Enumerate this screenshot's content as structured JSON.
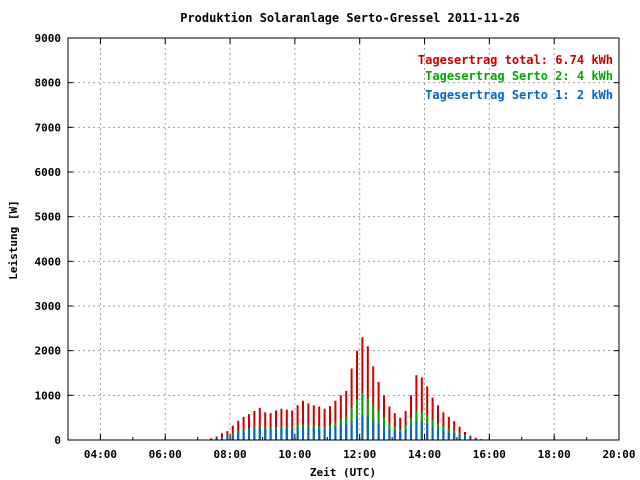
{
  "chart_data": {
    "type": "bar",
    "stacked": true,
    "title": "Produktion Solaranlage Serto-Gressel 2011-11-26",
    "xlabel": "Zeit (UTC)",
    "ylabel": "Leistung [W]",
    "ylim": [
      0,
      9000
    ],
    "xlim": [
      "03:00",
      "20:00"
    ],
    "grid": true,
    "legend_position": "top-right",
    "x_ticks": [
      "04:00",
      "06:00",
      "08:00",
      "10:00",
      "12:00",
      "14:00",
      "16:00",
      "18:00",
      "20:00"
    ],
    "y_ticks": [
      0,
      1000,
      2000,
      3000,
      4000,
      5000,
      6000,
      7000,
      8000,
      9000
    ],
    "legend": [
      {
        "label": "Tagesertrag total",
        "value": "6.74 kWh",
        "color": "#cc0000"
      },
      {
        "label": "Tagesertrag Serto 2",
        "value": "4 kWh",
        "color": "#00aa00"
      },
      {
        "label": "Tagesertrag Serto 1",
        "value": "2 kWh",
        "color": "#0066cc"
      }
    ],
    "colors": {
      "total": "#cc0000",
      "serto2": "#00aa00",
      "serto1": "#0066cc"
    },
    "x": [
      "07:25",
      "07:35",
      "07:45",
      "07:55",
      "08:05",
      "08:15",
      "08:25",
      "08:35",
      "08:45",
      "08:55",
      "09:05",
      "09:15",
      "09:25",
      "09:35",
      "09:45",
      "09:55",
      "10:05",
      "10:15",
      "10:25",
      "10:35",
      "10:45",
      "10:55",
      "11:05",
      "11:15",
      "11:25",
      "11:35",
      "11:45",
      "11:55",
      "12:05",
      "12:15",
      "12:25",
      "12:35",
      "12:45",
      "12:55",
      "13:05",
      "13:15",
      "13:25",
      "13:35",
      "13:45",
      "13:55",
      "14:05",
      "14:15",
      "14:25",
      "14:35",
      "14:45",
      "14:55",
      "15:05",
      "15:15",
      "15:25",
      "15:35",
      "15:45"
    ],
    "series": [
      {
        "name": "Tagesertrag Serto 1",
        "values": [
          20,
          40,
          60,
          80,
          120,
          170,
          200,
          230,
          260,
          280,
          250,
          240,
          260,
          270,
          260,
          250,
          280,
          300,
          290,
          280,
          260,
          250,
          270,
          300,
          320,
          350,
          420,
          500,
          560,
          520,
          420,
          360,
          300,
          240,
          200,
          180,
          230,
          320,
          420,
          400,
          360,
          300,
          260,
          220,
          190,
          160,
          120,
          80,
          40,
          20,
          10
        ]
      },
      {
        "name": "Tagesertrag Serto 2",
        "values": [
          15,
          30,
          60,
          90,
          150,
          200,
          240,
          260,
          290,
          310,
          280,
          270,
          290,
          300,
          300,
          290,
          330,
          350,
          330,
          320,
          310,
          290,
          320,
          380,
          450,
          520,
          700,
          900,
          1050,
          950,
          780,
          620,
          500,
          380,
          300,
          240,
          320,
          500,
          650,
          620,
          560,
          450,
          360,
          300,
          250,
          210,
          160,
          100,
          50,
          25,
          10
        ]
      },
      {
        "name": "Tagesertrag total",
        "values": [
          40,
          80,
          150,
          200,
          320,
          430,
          520,
          580,
          650,
          720,
          620,
          600,
          660,
          700,
          680,
          660,
          780,
          880,
          820,
          780,
          750,
          700,
          760,
          880,
          1000,
          1100,
          1600,
          2000,
          2300,
          2100,
          1650,
          1300,
          1000,
          750,
          600,
          500,
          650,
          1000,
          1450,
          1400,
          1200,
          950,
          780,
          620,
          520,
          420,
          300,
          180,
          100,
          50,
          20
        ]
      }
    ]
  }
}
